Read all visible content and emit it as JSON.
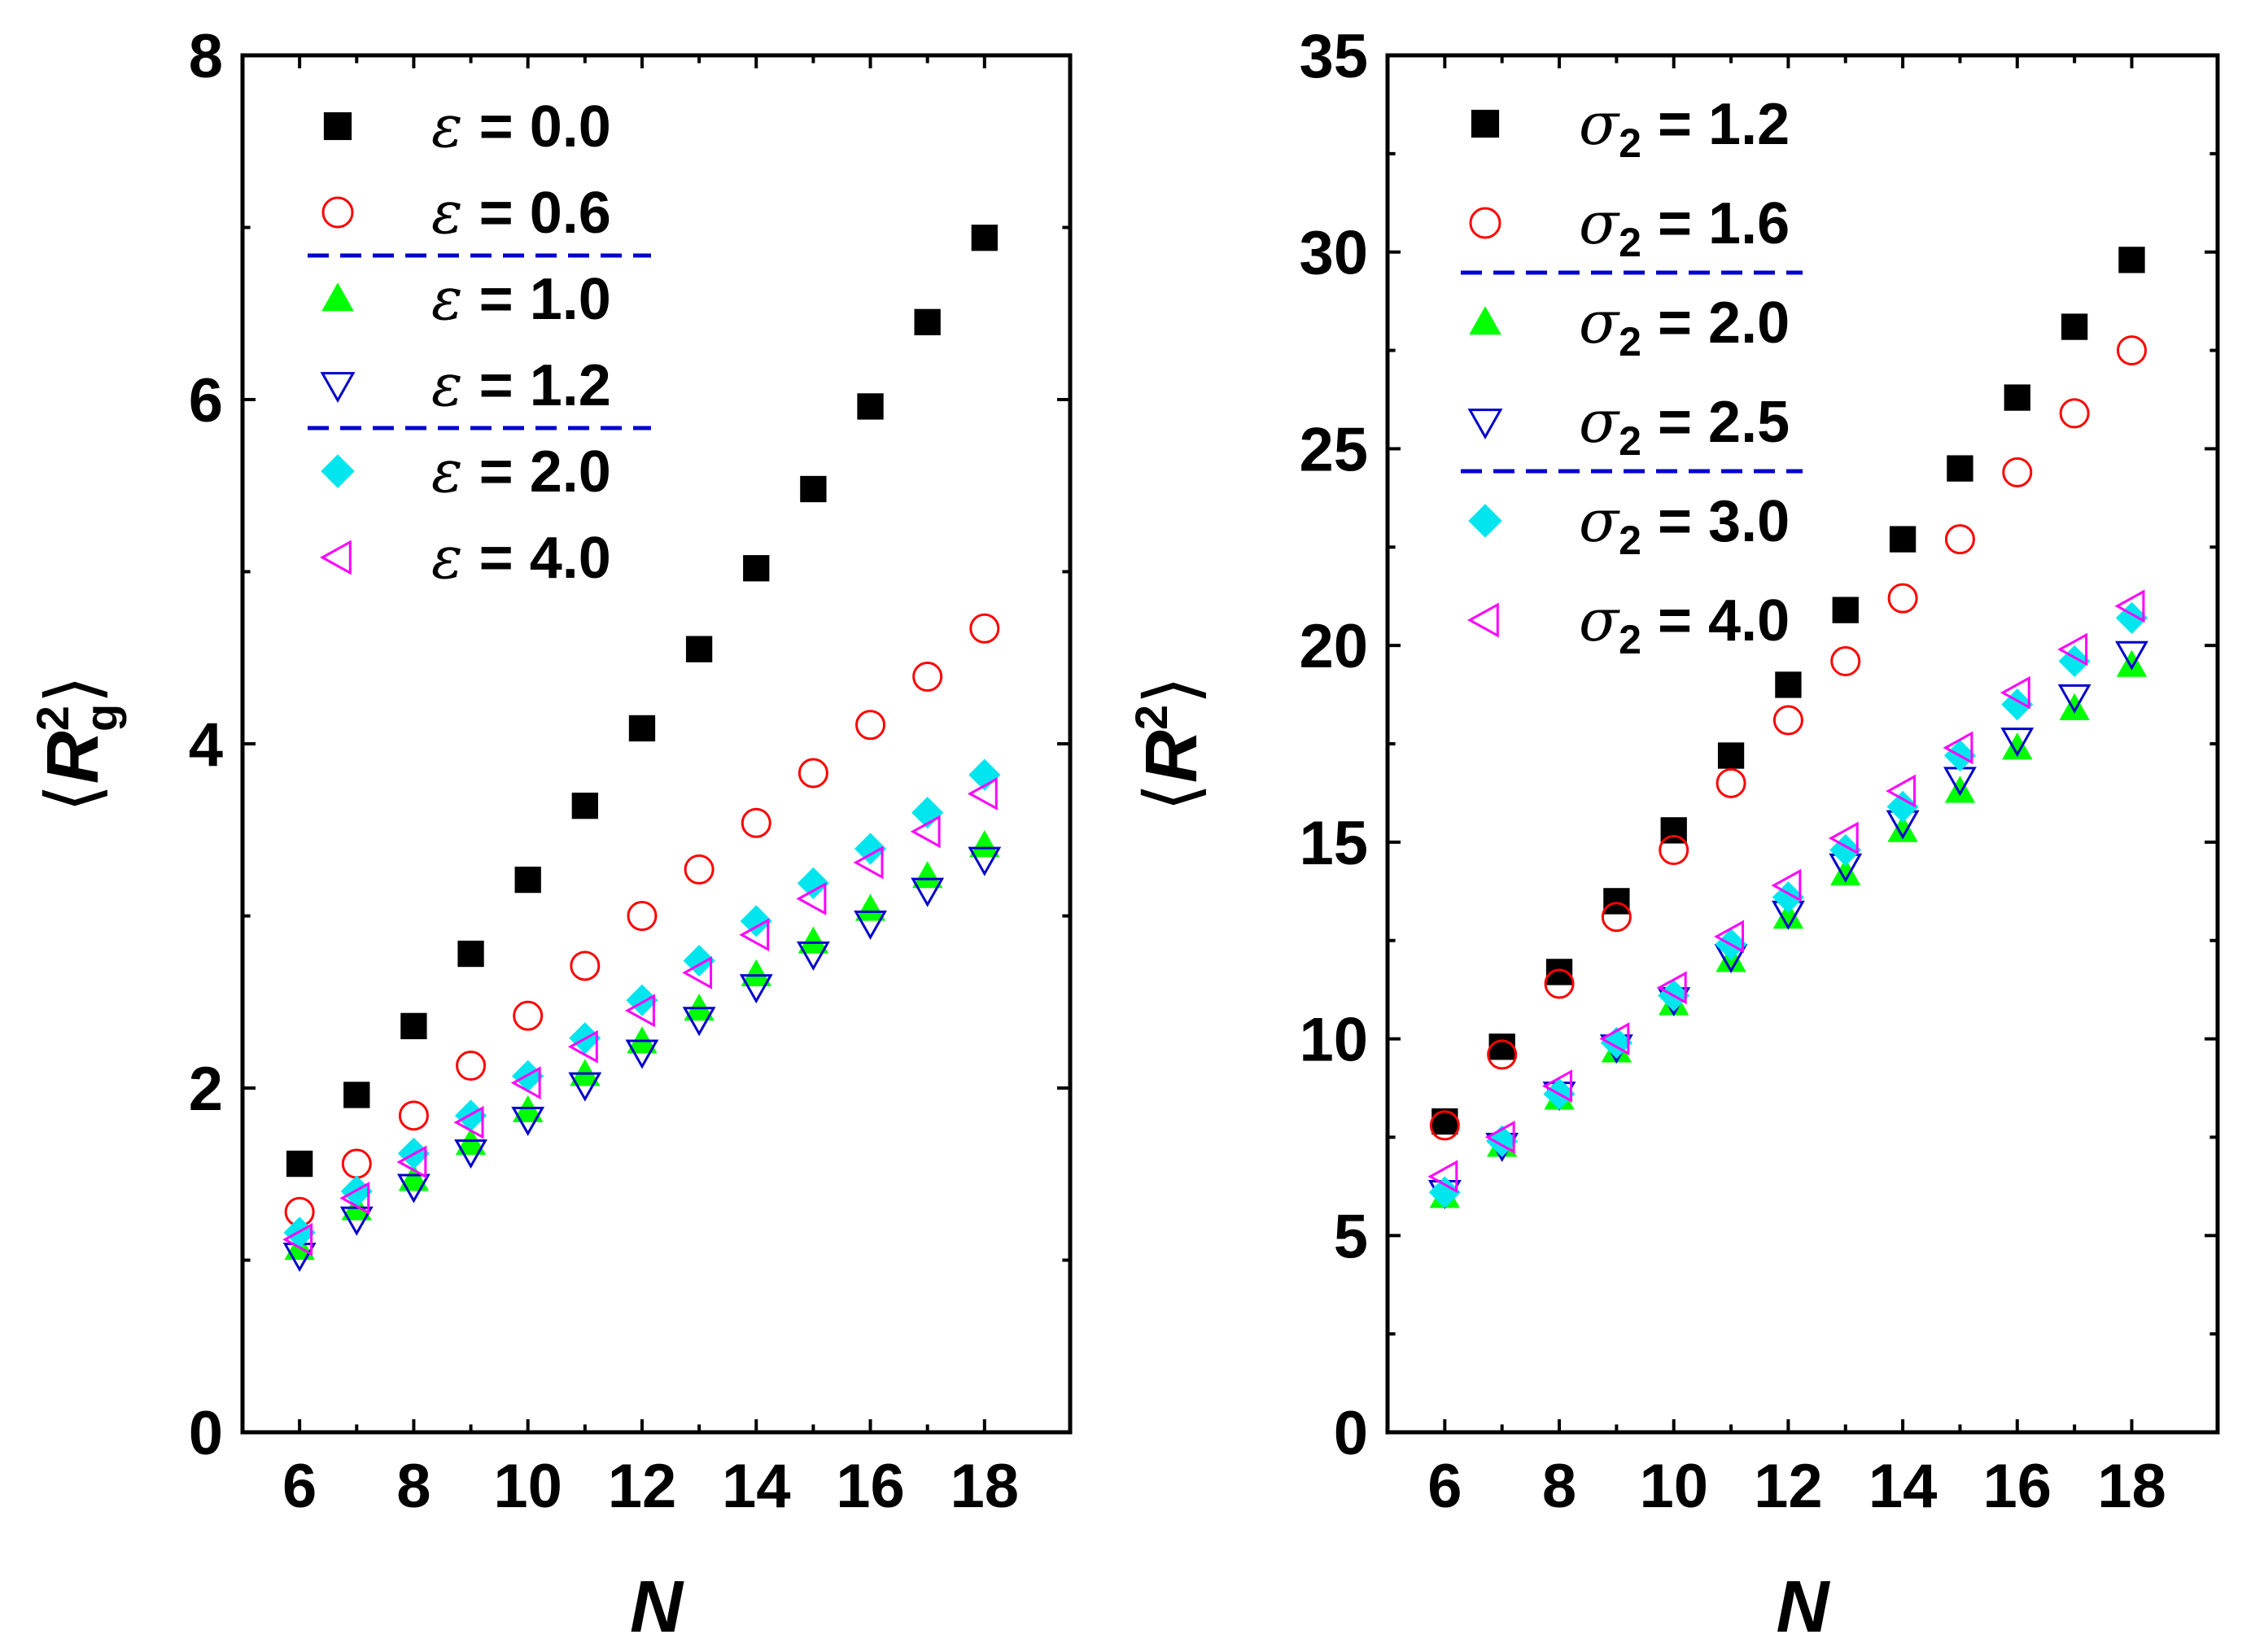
{
  "chart_data": [
    {
      "type": "scatter",
      "xlabel": "N",
      "ylabel": "⟨Rg²⟩",
      "ylabel_parts": {
        "open": "⟨",
        "letter": "R",
        "sup": "2",
        "sub": "g",
        "close": "⟩"
      },
      "xlim": [
        5,
        19.5
      ],
      "ylim": [
        0,
        8
      ],
      "xticks": [
        6,
        8,
        10,
        12,
        14,
        16,
        18
      ],
      "yticks": [
        0,
        2,
        4,
        6,
        8
      ],
      "x": [
        6,
        7,
        8,
        9,
        10,
        11,
        12,
        13,
        14,
        15,
        16,
        17,
        18
      ],
      "legend_position": "top-left",
      "legend_symbol": "ε",
      "dashed_separators_after": [
        1,
        3
      ],
      "series": [
        {
          "name": "ε = 0.0",
          "label_value": "0.0",
          "marker": "filled-square",
          "color": "#000000",
          "values": [
            1.56,
            1.96,
            2.36,
            2.78,
            3.21,
            3.64,
            4.09,
            4.55,
            5.02,
            5.48,
            5.96,
            6.45,
            6.94
          ]
        },
        {
          "name": "ε = 0.6",
          "label_value": "0.6",
          "marker": "open-circle",
          "color": "#ff0000",
          "values": [
            1.28,
            1.56,
            1.84,
            2.13,
            2.42,
            2.71,
            3.0,
            3.27,
            3.54,
            3.83,
            4.11,
            4.39,
            4.67
          ]
        },
        {
          "name": "ε = 1.0",
          "label_value": "1.0",
          "marker": "filled-triangle-up",
          "color": "#00ff00",
          "values": [
            1.07,
            1.3,
            1.47,
            1.68,
            1.87,
            2.08,
            2.27,
            2.46,
            2.66,
            2.85,
            3.04,
            3.23,
            3.41
          ]
        },
        {
          "name": "ε = 1.2",
          "label_value": "1.2",
          "marker": "open-triangle-down",
          "color": "#0000cc",
          "values": [
            1.03,
            1.24,
            1.43,
            1.63,
            1.82,
            2.02,
            2.21,
            2.4,
            2.59,
            2.78,
            2.96,
            3.15,
            3.33
          ]
        },
        {
          "name": "ε = 2.0",
          "label_value": "2.0",
          "marker": "filled-diamond",
          "color": "#00e5ee",
          "values": [
            1.16,
            1.4,
            1.62,
            1.84,
            2.07,
            2.29,
            2.51,
            2.74,
            2.97,
            3.19,
            3.39,
            3.6,
            3.82
          ]
        },
        {
          "name": "ε = 4.0",
          "label_value": "4.0",
          "marker": "open-triangle-left",
          "color": "#ff00ff",
          "values": [
            1.12,
            1.36,
            1.57,
            1.8,
            2.03,
            2.24,
            2.45,
            2.67,
            2.89,
            3.1,
            3.31,
            3.49,
            3.71
          ]
        }
      ]
    },
    {
      "type": "scatter",
      "xlabel": "N",
      "ylabel": "⟨R²⟩",
      "ylabel_parts": {
        "open": "⟨",
        "letter": "R",
        "sup": "2",
        "sub": "",
        "close": "⟩"
      },
      "xlim": [
        5,
        19.5
      ],
      "ylim": [
        0,
        35
      ],
      "xticks": [
        6,
        8,
        10,
        12,
        14,
        16,
        18
      ],
      "yticks": [
        0,
        5,
        10,
        15,
        20,
        25,
        30,
        35
      ],
      "x": [
        6,
        7,
        8,
        9,
        10,
        11,
        12,
        13,
        14,
        15,
        16,
        17,
        18
      ],
      "legend_position": "top-left",
      "legend_symbol": "σ",
      "legend_symbol_sub": "2",
      "dashed_separators_after": [
        1,
        3
      ],
      "series": [
        {
          "name": "σ2 = 1.2",
          "label_value": "1.2",
          "marker": "filled-square",
          "color": "#000000",
          "values": [
            7.9,
            9.8,
            11.7,
            13.5,
            15.3,
            17.2,
            19.0,
            20.9,
            22.7,
            24.5,
            26.3,
            28.1,
            29.8
          ]
        },
        {
          "name": "σ2 = 1.6",
          "label_value": "1.6",
          "marker": "open-circle",
          "color": "#ff0000",
          "values": [
            7.8,
            9.6,
            11.4,
            13.1,
            14.8,
            16.5,
            18.1,
            19.6,
            21.2,
            22.7,
            24.4,
            25.9,
            27.5
          ]
        },
        {
          "name": "σ2 = 2.0",
          "label_value": "2.0",
          "marker": "filled-triangle-up",
          "color": "#00ff00",
          "values": [
            6.0,
            7.3,
            8.5,
            9.7,
            10.9,
            12.0,
            13.1,
            14.2,
            15.3,
            16.3,
            17.4,
            18.4,
            19.5
          ]
        },
        {
          "name": "σ2 = 2.5",
          "label_value": "2.5",
          "marker": "open-triangle-down",
          "color": "#0000cc",
          "values": [
            6.1,
            7.3,
            8.6,
            9.8,
            11.0,
            12.1,
            13.2,
            14.4,
            15.5,
            16.6,
            17.6,
            18.7,
            19.8
          ]
        },
        {
          "name": "σ2 = 3.0",
          "label_value": "3.0",
          "marker": "filled-diamond",
          "color": "#00e5ee",
          "values": [
            6.1,
            7.4,
            8.6,
            9.9,
            11.1,
            12.4,
            13.6,
            14.8,
            15.9,
            17.2,
            18.5,
            19.6,
            20.7
          ]
        },
        {
          "name": "σ2 = 4.0",
          "label_value": "4.0",
          "marker": "open-triangle-left",
          "color": "#ff00ff",
          "values": [
            6.5,
            7.5,
            8.8,
            10.0,
            11.3,
            12.6,
            13.9,
            15.1,
            16.3,
            17.4,
            18.8,
            19.9,
            21.0
          ]
        }
      ]
    }
  ]
}
